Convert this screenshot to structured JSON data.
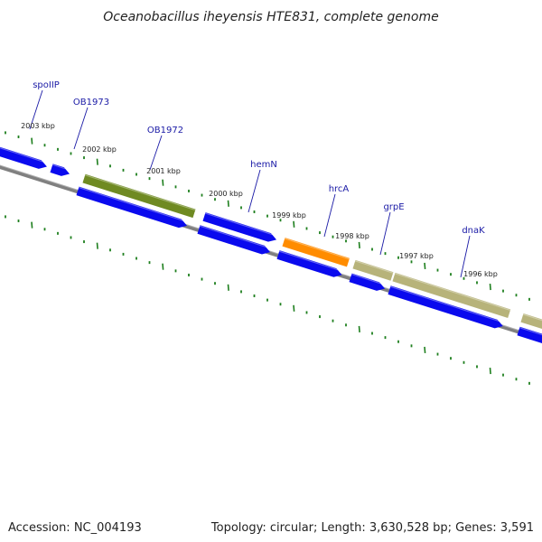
{
  "title": "Oceanobacillus iheyensis HTE831, complete genome",
  "footer": {
    "accession": "Accession: NC_004193",
    "topology": "Topology: circular; Length: 3,630,528 bp; Genes: 3,591"
  },
  "colors": {
    "cds_blue": "#0a0aee",
    "cds_olive": "#6f8a22",
    "cds_khaki": "#b7b37a",
    "cds_orange": "#ff8c00",
    "backbone": "#808080",
    "tick_green": "#1e7f1e",
    "label_blue": "#1a1aa6"
  },
  "gene_labels": [
    "spoIIP",
    "OB1973",
    "OB1972",
    "hemN",
    "hrcA",
    "grpE",
    "dnaK"
  ],
  "scale_labels": [
    "2003 kbp",
    "2002 kbp",
    "2001 kbp",
    "2000 kbp",
    "1999 kbp",
    "1998 kbp",
    "1997 kbp",
    "1996 kbp"
  ]
}
